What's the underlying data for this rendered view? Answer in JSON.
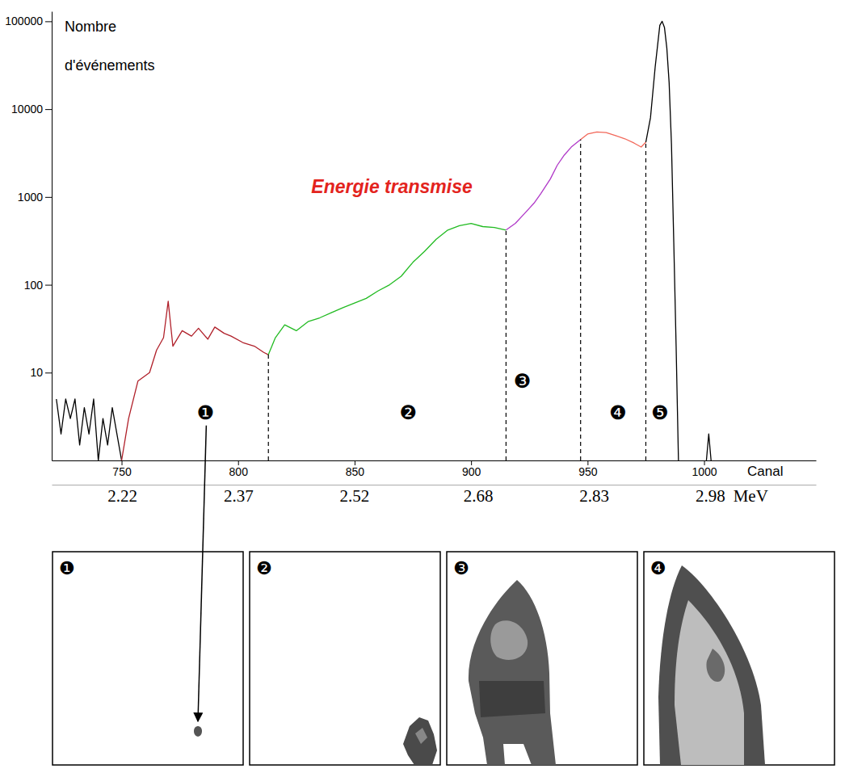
{
  "chart_data": {
    "type": "line",
    "log": "y",
    "grid": false,
    "xlabel": "Canal",
    "ylabel": "Nombre d'événements",
    "x2label": "MeV",
    "xlim": [
      720,
      1048
    ],
    "ylim": [
      1,
      130000
    ],
    "x2lim": [
      2.129,
      3.117
    ],
    "xticks": [
      750,
      800,
      850,
      900,
      950,
      1000
    ],
    "yticks": [
      10,
      100,
      1000,
      10000,
      100000
    ],
    "x2ticks": [
      2.22,
      2.37,
      2.52,
      2.68,
      2.83,
      2.98
    ],
    "series": [
      {
        "color": "#000000",
        "x": [
          722,
          724,
          726,
          728,
          730,
          732,
          734,
          736,
          738,
          740,
          742,
          744,
          746,
          748,
          750
        ],
        "values": [
          5,
          2,
          5,
          3,
          5,
          1.5,
          4,
          2,
          5,
          1,
          3,
          1.5,
          4,
          2,
          1
        ]
      },
      {
        "color": "#b0202a",
        "x": [
          750,
          753,
          757,
          762,
          765,
          768,
          770,
          772,
          776,
          780,
          783,
          787,
          790,
          794,
          797,
          802,
          807,
          811,
          813
        ],
        "values": [
          1,
          3,
          8,
          10,
          18,
          25,
          65,
          20,
          30,
          26,
          32,
          24,
          33,
          28,
          26,
          22,
          20,
          17,
          16
        ]
      },
      {
        "color": "#22bb22",
        "x": [
          813,
          816,
          820,
          825,
          830,
          835,
          840,
          845,
          850,
          855,
          860,
          865,
          870,
          875,
          880,
          885,
          890,
          895,
          900,
          905,
          910,
          915
        ],
        "values": [
          16,
          25,
          35,
          30,
          38,
          42,
          48,
          55,
          62,
          70,
          85,
          100,
          125,
          180,
          240,
          330,
          420,
          470,
          500,
          460,
          450,
          420
        ]
      },
      {
        "color": "#b038c8",
        "x": [
          915,
          919,
          923,
          927,
          930,
          934,
          937,
          940,
          943,
          947
        ],
        "values": [
          420,
          500,
          650,
          850,
          1100,
          1600,
          2300,
          3000,
          3700,
          4500
        ]
      },
      {
        "color": "#f2685a",
        "x": [
          947,
          950,
          954,
          958,
          962,
          966,
          970,
          973,
          975
        ],
        "values": [
          4500,
          5200,
          5500,
          5400,
          5000,
          4600,
          4100,
          3700,
          4200
        ]
      },
      {
        "color": "#000000",
        "x": [
          975,
          977,
          979,
          981,
          982,
          983,
          984,
          985,
          986,
          987,
          988,
          989,
          995,
          1001,
          1002,
          1003
        ],
        "values": [
          4200,
          8000,
          30000,
          90000,
          100000,
          85000,
          50000,
          20000,
          4000,
          300,
          20,
          1,
          null,
          1,
          2,
          1
        ]
      }
    ],
    "boundaries": [
      813,
      915,
      947,
      975
    ],
    "regions": [
      {
        "label": "❶",
        "x": 786,
        "y": 3.5
      },
      {
        "label": "❷",
        "x": 873,
        "y": 3.5
      },
      {
        "label": "❸",
        "x": 922,
        "y": 8
      },
      {
        "label": "❹",
        "x": 963,
        "y": 3.5
      },
      {
        "label": "❺",
        "x": 981,
        "y": 3.5
      }
    ],
    "annotations": [
      {
        "text": "Energie transmise",
        "x": 866,
        "y": 1320
      }
    ]
  },
  "panels": [
    {
      "label": "❶"
    },
    {
      "label": "❷"
    },
    {
      "label": "❸"
    },
    {
      "label": "❹"
    }
  ]
}
